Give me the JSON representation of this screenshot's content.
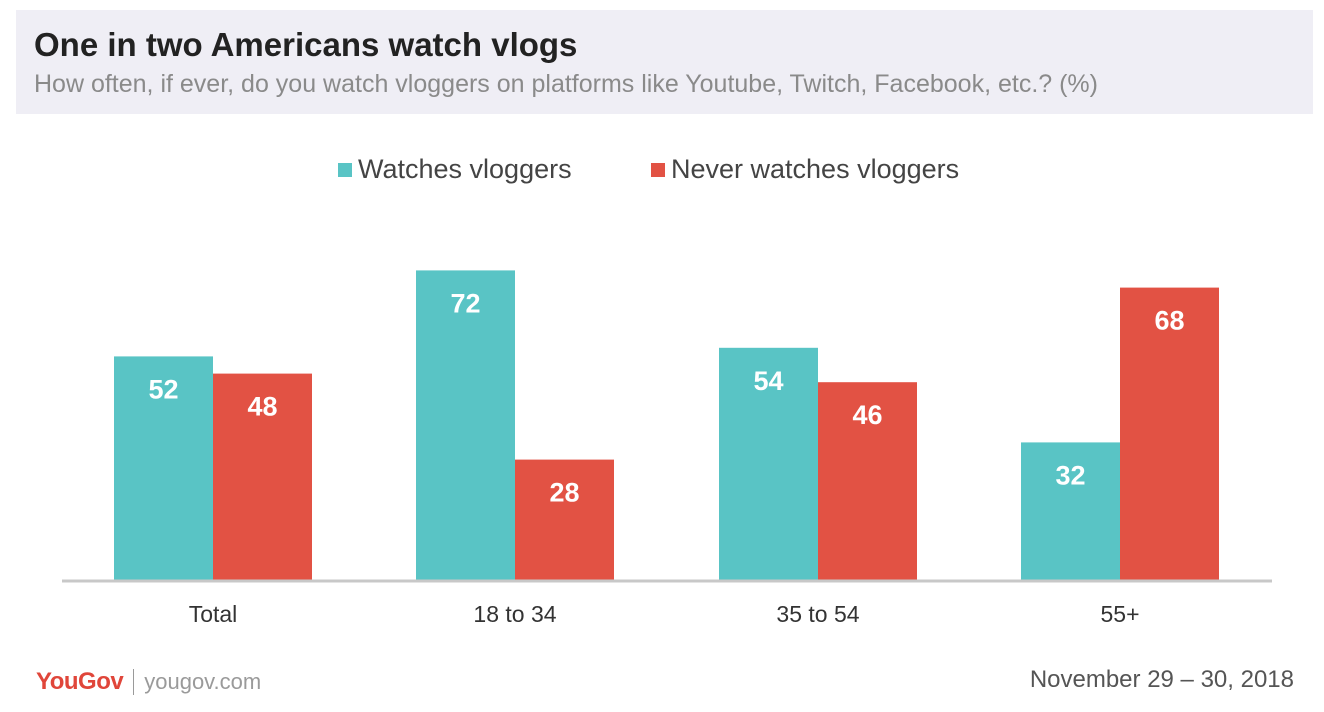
{
  "title": "One in two Americans watch vlogs",
  "subtitle": "How often, if ever, do you watch vloggers on platforms like Youtube, Twitch, Facebook, etc.? (%)",
  "colors": {
    "watches": "#59c4c5",
    "never": "#e25244",
    "axis": "#c8c8c8",
    "tick_label": "#333333",
    "bar_label": "#ffffff"
  },
  "legend": [
    {
      "label": "Watches vloggers",
      "color": "#59c4c5"
    },
    {
      "label": "Never watches vloggers",
      "color": "#e25244"
    }
  ],
  "chart_data": {
    "type": "bar",
    "categories": [
      "Total",
      "18 to 34",
      "35 to 54",
      "55+"
    ],
    "series": [
      {
        "name": "Watches vloggers",
        "values": [
          52,
          72,
          54,
          32
        ]
      },
      {
        "name": "Never watches vloggers",
        "values": [
          48,
          28,
          46,
          68
        ]
      }
    ],
    "ylim": [
      0,
      100
    ],
    "grid": false,
    "legend_position": "top-center",
    "data_labels": true
  },
  "footer": {
    "brand": "YouGov",
    "site": "yougov.com",
    "date": "November 29 – 30, 2018"
  }
}
